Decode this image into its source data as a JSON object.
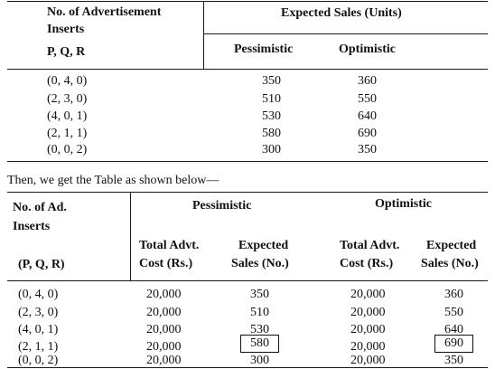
{
  "table1": {
    "head_col1_line1": "No. of Advertisement",
    "head_col1_line2": "Inserts",
    "head_col1_line3": "P, Q, R",
    "head_group": "Expected Sales (Units)",
    "head_pess": "Pessimistic",
    "head_opt": "Optimistic",
    "rows": [
      {
        "pqr": "(0, 4, 0)",
        "pess": "350",
        "opt": "360"
      },
      {
        "pqr": "(2, 3, 0)",
        "pess": "510",
        "opt": "550"
      },
      {
        "pqr": "(4, 0, 1)",
        "pess": "530",
        "opt": "640"
      },
      {
        "pqr": "(2, 1, 1)",
        "pess": "580",
        "opt": "690"
      },
      {
        "pqr": "(0, 0, 2)",
        "pess": "300",
        "opt": "350"
      }
    ]
  },
  "sentence": "Then, we get the Table as shown below—",
  "table2": {
    "head_col1_line1": "No. of Ad.",
    "head_col1_line2": "Inserts",
    "head_col1_line3": "(P, Q, R)",
    "group_pess": "Pessimistic",
    "group_opt": "Optimistic",
    "sub_cost_line1": "Total Advt.",
    "sub_cost_line2": "Cost (Rs.)",
    "sub_sales_line1": "Expected",
    "sub_sales_line2": "Sales (No.)",
    "rows": [
      {
        "pqr": "(0, 4, 0)",
        "p_cost": "20,000",
        "p_sales": "350",
        "o_cost": "20,000",
        "o_sales": "360"
      },
      {
        "pqr": "(2, 3, 0)",
        "p_cost": "20,000",
        "p_sales": "510",
        "o_cost": "20,000",
        "o_sales": "550"
      },
      {
        "pqr": "(4, 0, 1)",
        "p_cost": "20,000",
        "p_sales": "530",
        "o_cost": "20,000",
        "o_sales": "640"
      },
      {
        "pqr": "(2, 1, 1)",
        "p_cost": "20,000",
        "p_sales": "580",
        "o_cost": "20,000",
        "o_sales": "690"
      },
      {
        "pqr": "(0, 0, 2)",
        "p_cost": "20,000",
        "p_sales": "300",
        "o_cost": "20,000",
        "o_sales": "350"
      }
    ]
  }
}
